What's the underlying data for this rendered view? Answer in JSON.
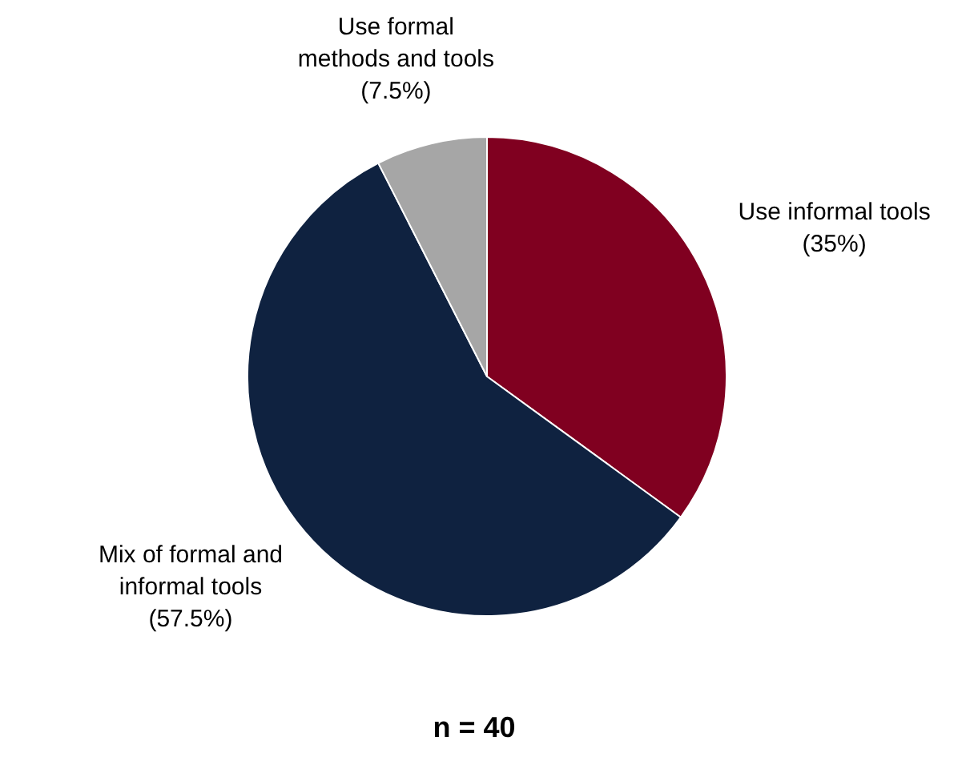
{
  "chart_data": {
    "type": "pie",
    "categories": [
      "Use informal tools",
      "Mix of formal and informal tools",
      "Use formal methods and tools"
    ],
    "values": [
      35,
      57.5,
      7.5
    ],
    "value_labels": [
      "(35%)",
      "(57.5%)",
      "(7.5%)"
    ],
    "colors": [
      "#800020",
      "#0f2240",
      "#a6a6a6"
    ],
    "legend": false,
    "annotations": [
      "n = 40"
    ]
  }
}
